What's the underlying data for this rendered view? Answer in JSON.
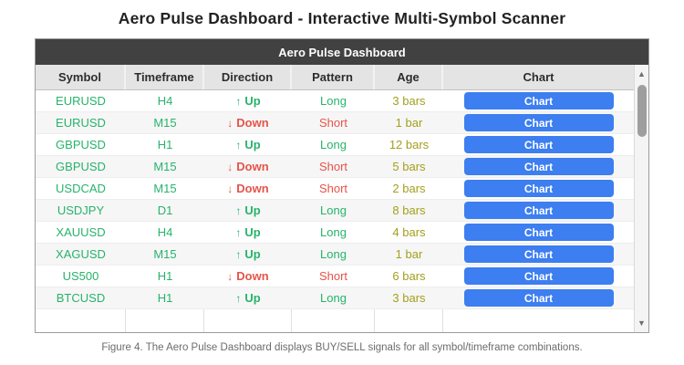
{
  "page": {
    "title": "Aero Pulse Dashboard - Interactive Multi-Symbol Scanner",
    "caption": "Figure 4. The Aero Pulse Dashboard displays BUY/SELL signals for all symbol/timeframe combinations."
  },
  "dashboard": {
    "panel_title": "Aero Pulse Dashboard",
    "columns": {
      "symbol": "Symbol",
      "timeframe": "Timeframe",
      "direction": "Direction",
      "pattern": "Pattern",
      "age": "Age",
      "chart": "Chart"
    },
    "chart_button_label": "Chart",
    "rows": [
      {
        "symbol": "EURUSD",
        "timeframe": "H4",
        "arrow": "↑",
        "direction": "Up",
        "pattern": "Long",
        "age": "3 bars"
      },
      {
        "symbol": "EURUSD",
        "timeframe": "M15",
        "arrow": "↓",
        "direction": "Down",
        "pattern": "Short",
        "age": "1 bar"
      },
      {
        "symbol": "GBPUSD",
        "timeframe": "H1",
        "arrow": "↑",
        "direction": "Up",
        "pattern": "Long",
        "age": "12 bars"
      },
      {
        "symbol": "GBPUSD",
        "timeframe": "M15",
        "arrow": "↓",
        "direction": "Down",
        "pattern": "Short",
        "age": "5 bars"
      },
      {
        "symbol": "USDCAD",
        "timeframe": "M15",
        "arrow": "↓",
        "direction": "Down",
        "pattern": "Short",
        "age": "2 bars"
      },
      {
        "symbol": "USDJPY",
        "timeframe": "D1",
        "arrow": "↑",
        "direction": "Up",
        "pattern": "Long",
        "age": "8 bars"
      },
      {
        "symbol": "XAUUSD",
        "timeframe": "H4",
        "arrow": "↑",
        "direction": "Up",
        "pattern": "Long",
        "age": "4 bars"
      },
      {
        "symbol": "XAGUSD",
        "timeframe": "M15",
        "arrow": "↑",
        "direction": "Up",
        "pattern": "Long",
        "age": "1 bar"
      },
      {
        "symbol": "US500",
        "timeframe": "H1",
        "arrow": "↓",
        "direction": "Down",
        "pattern": "Short",
        "age": "6 bars"
      },
      {
        "symbol": "BTCUSD",
        "timeframe": "H1",
        "arrow": "↑",
        "direction": "Up",
        "pattern": "Long",
        "age": "3 bars"
      }
    ]
  },
  "icons": {
    "scroll_up": "▲",
    "scroll_down": "▼"
  },
  "colors": {
    "bullish_green": "#27b36b",
    "bearish_red": "#e5544a",
    "age_olive": "#a3a01e",
    "button_blue": "#3d7ef0",
    "panel_header_dark": "#414141"
  }
}
